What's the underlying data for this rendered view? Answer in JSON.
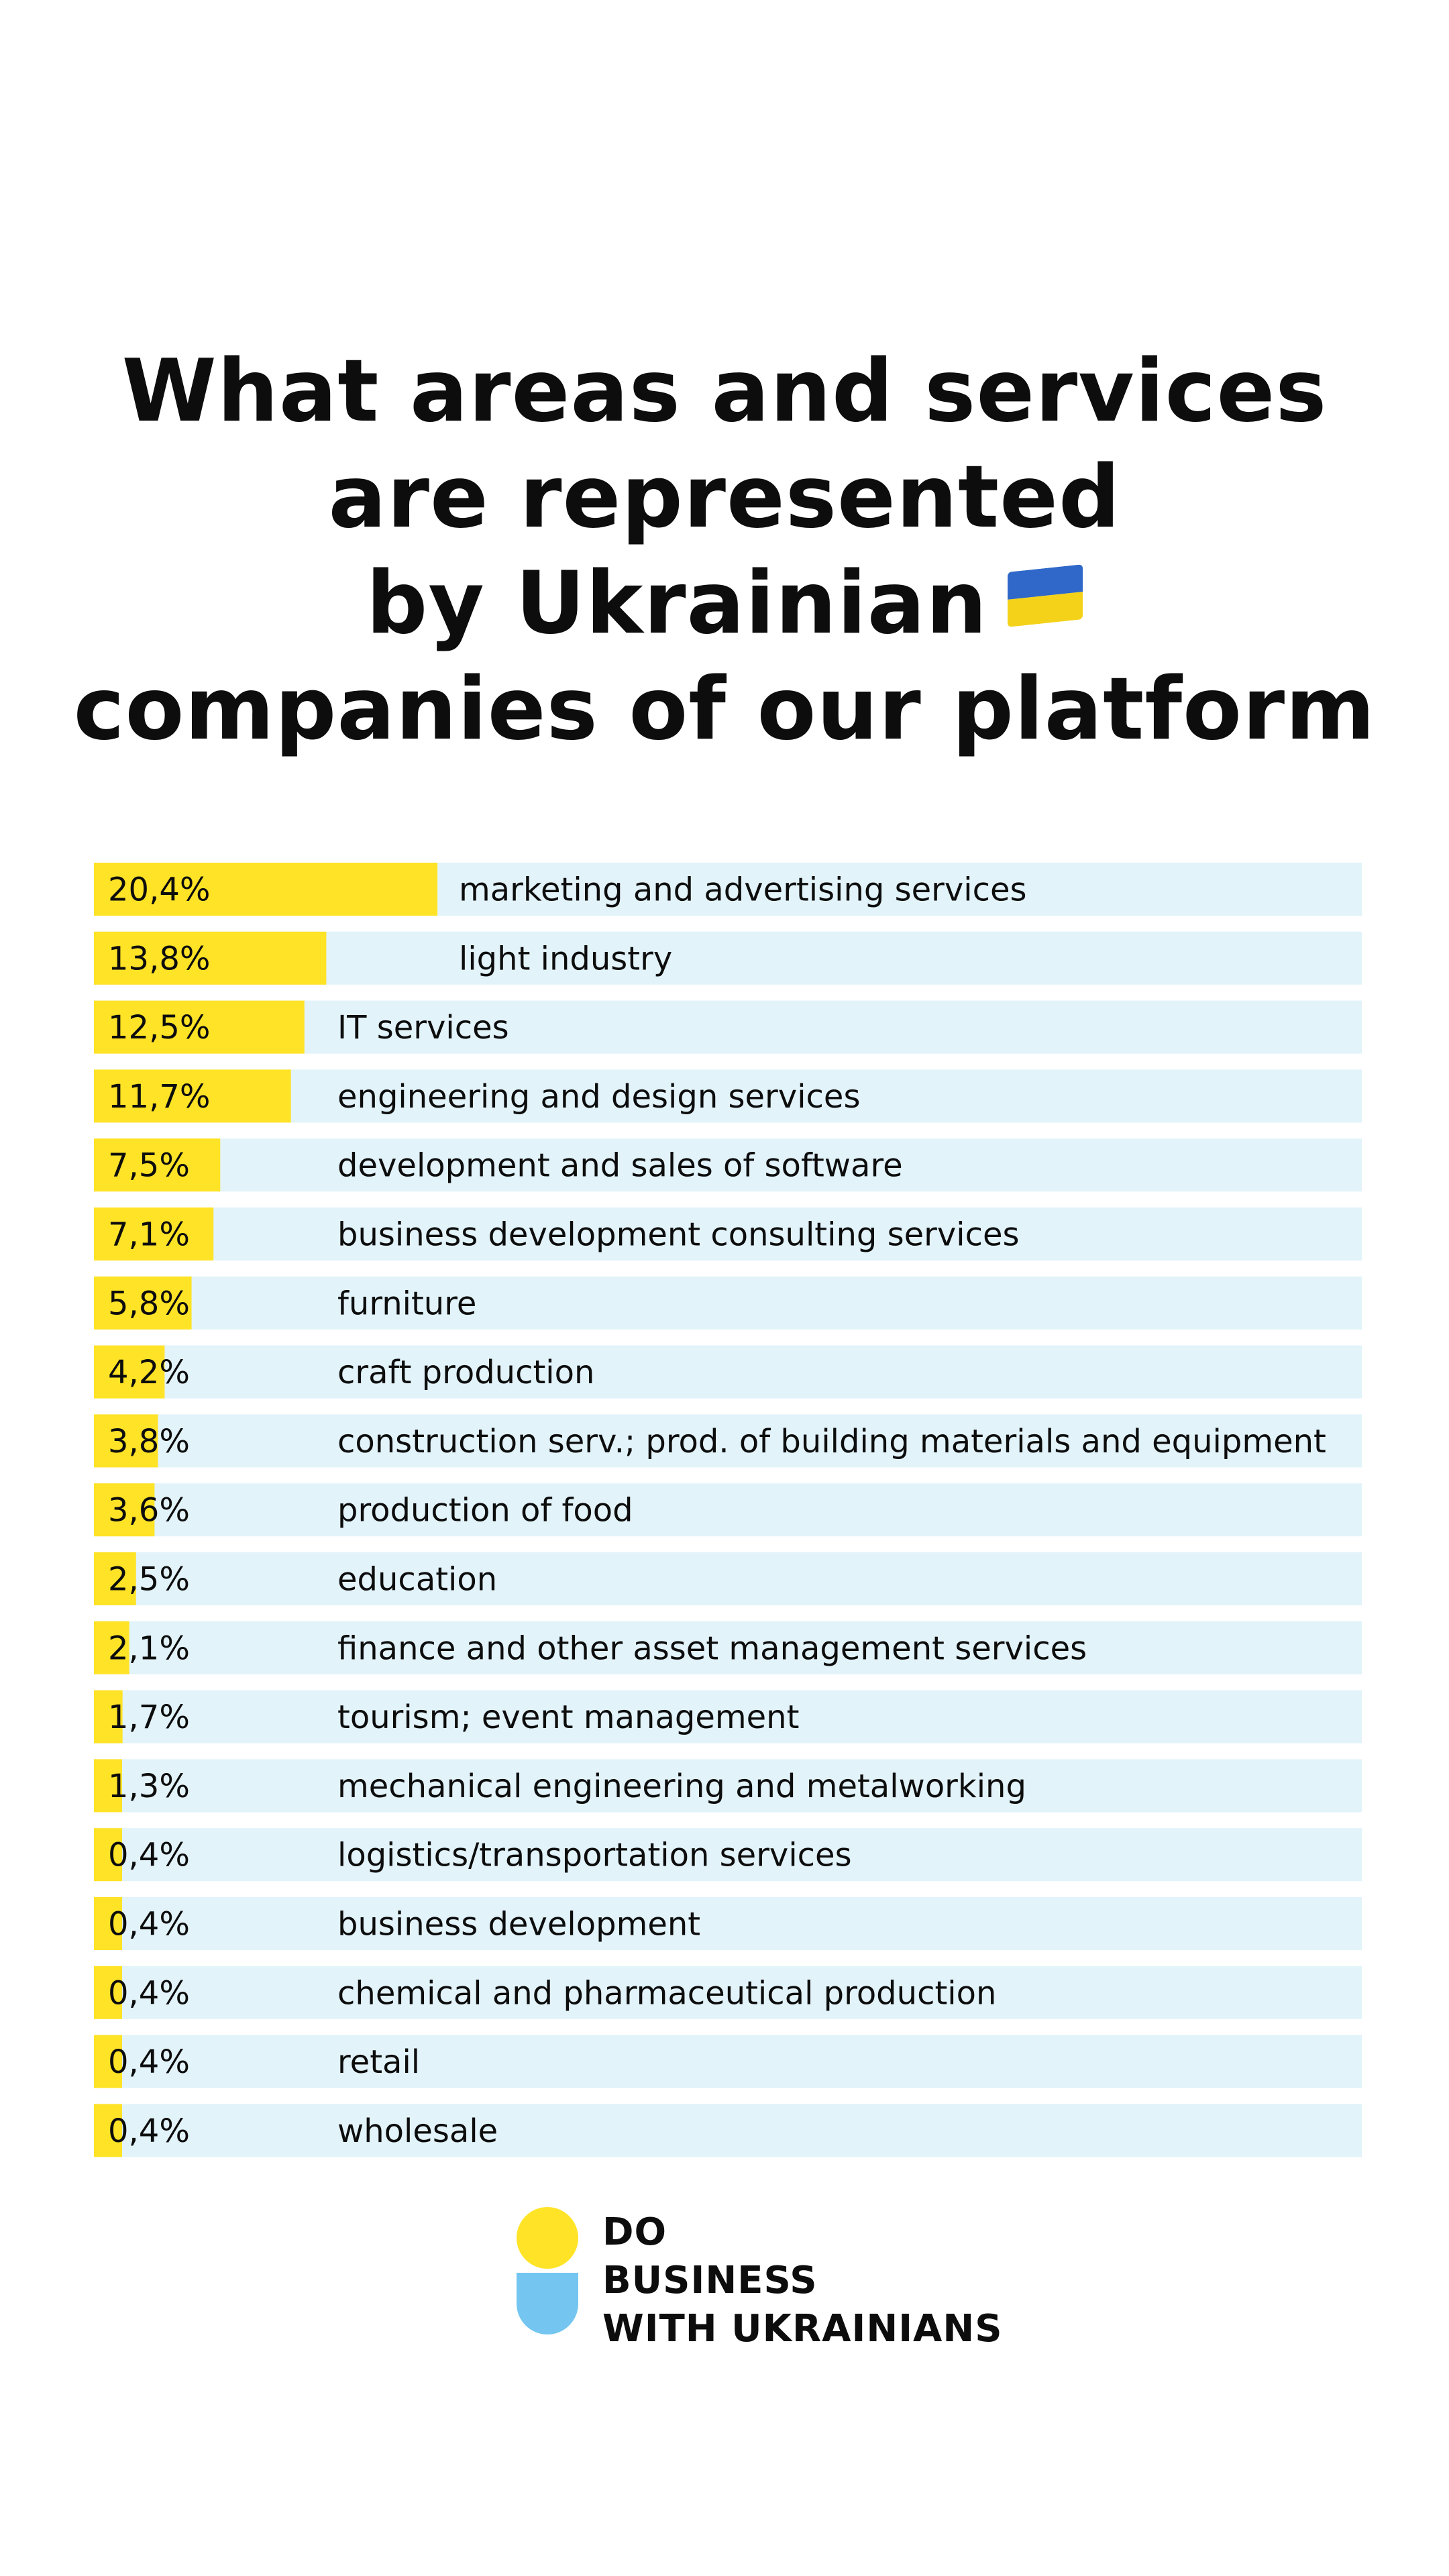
{
  "title": {
    "line1": "What areas and services",
    "line2": "are represented",
    "line3": "by Ukrainian",
    "line4": "companies of our platform"
  },
  "colors": {
    "bar": "#ffe326",
    "row_background": "#e2f3fa",
    "flag_blue": "#2f68c8",
    "flag_yellow": "#f4d21a",
    "logo_blue": "#74c6f0"
  },
  "flag_icon": "ukraine-flag-icon",
  "chart_data": {
    "type": "bar",
    "orientation": "horizontal",
    "categories": [
      "marketing and advertising services",
      "light industry",
      "IT services",
      "engineering and design services",
      "development and sales of software",
      "business development consulting services",
      "furniture",
      "craft production",
      "construction serv.; prod. of building materials and equipment",
      "production of food",
      "education",
      "finance and other asset management services",
      "tourism; event management",
      "mechanical engineering and metalworking",
      "logistics/transportation services",
      "business development",
      "chemical and pharmaceutical production",
      "retail",
      "wholesale"
    ],
    "values": [
      20.4,
      13.8,
      12.5,
      11.7,
      7.5,
      7.1,
      5.8,
      4.2,
      3.8,
      3.6,
      2.5,
      2.1,
      1.7,
      1.3,
      0.4,
      0.4,
      0.4,
      0.4,
      0.4
    ],
    "labels": [
      "20,4%",
      "13,8%",
      "12,5%",
      "11,7%",
      "7,5%",
      "7,1%",
      "5,8%",
      "4,2%",
      "3,8%",
      "3,6%",
      "2,5%",
      "2,1%",
      "1,7%",
      "1,3%",
      "0,4%",
      "0,4%",
      "0,4%",
      "0,4%",
      "0,4%"
    ],
    "unit": "%",
    "xlim": [
      0,
      100
    ]
  },
  "logo": {
    "line1": "DO",
    "line2": "BUSINESS",
    "line3": "WITH UKRAINIANS"
  }
}
